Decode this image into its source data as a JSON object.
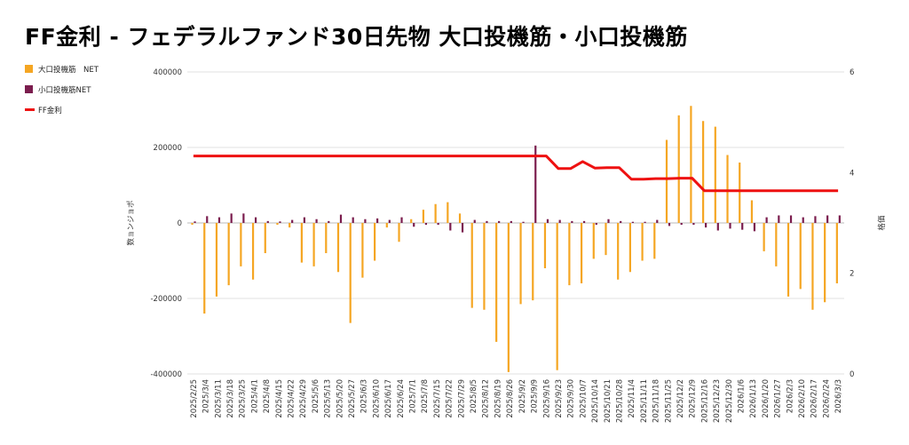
{
  "title": "FF金利 - フェデラルファンド30日先物 大口投機筋・小口投機筋",
  "legend": {
    "large": {
      "label": "大口投機筋　NET",
      "color": "#f5a623"
    },
    "small": {
      "label": "小口投機筋NET",
      "color": "#7b1d4e"
    },
    "ff": {
      "label": "FF金利",
      "color": "#ee1111"
    }
  },
  "chart_data": {
    "type": "bar+line",
    "title": "FF金利 - フェデラルファンド30日先物 大口投機筋・小口投機筋",
    "left_axis": {
      "label": "数ョンジョポ",
      "range": [
        -400000,
        400000
      ],
      "ticks": [
        "400000",
        "200000",
        "0",
        "-200000",
        "-400000"
      ]
    },
    "right_axis": {
      "label": "格価",
      "range": [
        0,
        6
      ],
      "ticks": [
        "6",
        "4",
        "2",
        "0"
      ]
    },
    "grid": true,
    "legend_position": "left",
    "x_labels": [
      "2025/2/25",
      "2025/3/4",
      "2025/3/11",
      "2025/3/18",
      "2025/3/25",
      "2025/4/1",
      "2025/4/8",
      "2025/4/15",
      "2025/4/22",
      "2025/4/29",
      "2025/5/6",
      "2025/5/13",
      "2025/5/20",
      "2025/5/27",
      "2025/6/3",
      "2025/6/10",
      "2025/6/17",
      "2025/6/24",
      "2025/7/1",
      "2025/7/8",
      "2025/7/15",
      "2025/7/22",
      "2025/7/29",
      "2025/8/5",
      "2025/8/12",
      "2025/8/19",
      "2025/8/26",
      "2025/9/2",
      "2025/9/9",
      "2025/9/16",
      "2025/9/23",
      "2025/9/30",
      "2025/10/7",
      "2025/10/14",
      "2025/10/21",
      "2025/10/28",
      "2025/11/4",
      "2025/11/11",
      "2025/11/18",
      "2025/11/25",
      "2025/12/2",
      "2025/12/9",
      "2025/12/16",
      "2025/12/23",
      "2025/12/30",
      "2026/1/6",
      "2026/1/13",
      "2026/1/20",
      "2026/1/27",
      "2026/2/3",
      "2026/2/10",
      "2026/2/17",
      "2026/2/24",
      "2026/3/3"
    ],
    "tick_label_every": 1,
    "large_net": [
      -5000,
      -240000,
      -195000,
      -165000,
      -115000,
      -150000,
      -80000,
      -5000,
      -12000,
      -105000,
      -115000,
      -80000,
      -130000,
      -265000,
      -145000,
      -100000,
      -12000,
      -50000,
      10000,
      35000,
      50000,
      55000,
      25000,
      -225000,
      -230000,
      -315000,
      -395000,
      -215000,
      -205000,
      -120000,
      -390000,
      -165000,
      -160000,
      -95000,
      -85000,
      -150000,
      -130000,
      -100000,
      -95000,
      220000,
      285000,
      310000,
      270000,
      255000,
      180000,
      160000,
      60000,
      -75000,
      -115000,
      -195000,
      -175000,
      -230000,
      -210000,
      -160000
    ],
    "small_net": [
      4000,
      18000,
      15000,
      25000,
      25000,
      15000,
      5000,
      4000,
      8000,
      15000,
      10000,
      5000,
      22000,
      15000,
      10000,
      12000,
      8000,
      15000,
      -10000,
      -5000,
      -5000,
      -20000,
      -25000,
      8000,
      5000,
      5000,
      5000,
      3000,
      205000,
      10000,
      8000,
      5000,
      5000,
      -5000,
      10000,
      5000,
      3000,
      3000,
      8000,
      -8000,
      -5000,
      -5000,
      -12000,
      -20000,
      -15000,
      -18000,
      -22000,
      15000,
      20000,
      20000,
      15000,
      18000,
      20000,
      20000
    ],
    "ff_rate": [
      4.33,
      4.33,
      4.33,
      4.33,
      4.33,
      4.33,
      4.33,
      4.33,
      4.33,
      4.33,
      4.33,
      4.33,
      4.33,
      4.33,
      4.33,
      4.33,
      4.33,
      4.33,
      4.33,
      4.33,
      4.33,
      4.33,
      4.33,
      4.33,
      4.33,
      4.33,
      4.33,
      4.33,
      4.33,
      4.33,
      4.08,
      4.08,
      4.22,
      4.09,
      4.1,
      4.1,
      3.87,
      3.87,
      3.88,
      3.88,
      3.89,
      3.89,
      3.64,
      3.64,
      3.64,
      3.64,
      3.64,
      3.64,
      3.64,
      3.64,
      3.64,
      3.64,
      3.64,
      3.64
    ]
  }
}
